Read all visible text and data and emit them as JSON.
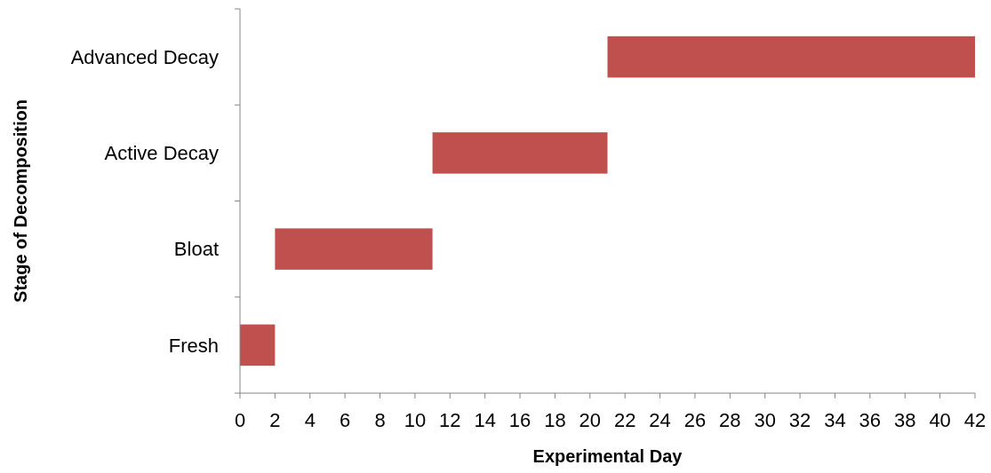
{
  "chart_data": {
    "type": "bar",
    "orientation": "horizontal",
    "xlabel": "Experimental Day",
    "ylabel": "Stage of Decomposition",
    "categories": [
      "Advanced Decay",
      "Active Decay",
      "Bloat",
      "Fresh"
    ],
    "base": [
      21,
      11,
      2,
      0
    ],
    "values": [
      21,
      10,
      9,
      2
    ],
    "color": "#c0504d",
    "xlim": [
      0,
      42
    ],
    "xticks": [
      0,
      2,
      4,
      6,
      8,
      10,
      12,
      14,
      16,
      18,
      20,
      22,
      24,
      26,
      28,
      30,
      32,
      34,
      36,
      38,
      40,
      42
    ],
    "grid": false
  }
}
